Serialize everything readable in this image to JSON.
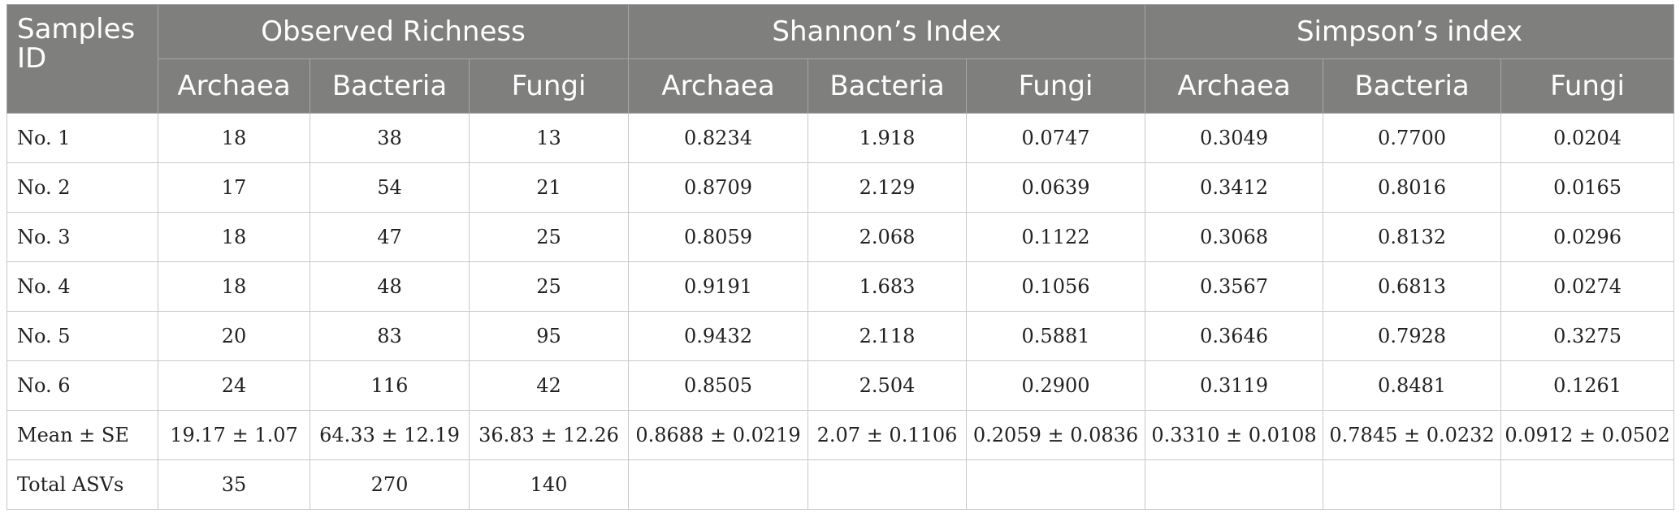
{
  "header": {
    "sample_id": "Samples ID",
    "groups": [
      "Observed Richness",
      "Shannon’s Index",
      "Simpson’s index"
    ],
    "subcolumns": [
      "Archaea",
      "Bacteria",
      "Fungi",
      "Archaea",
      "Bacteria",
      "Fungi",
      "Archaea",
      "Bacteria",
      "Fungi"
    ]
  },
  "rows": [
    {
      "id": "No. 1",
      "cells": [
        "18",
        "38",
        "13",
        "0.8234",
        "1.918",
        "0.0747",
        "0.3049",
        "0.7700",
        "0.0204"
      ]
    },
    {
      "id": "No. 2",
      "cells": [
        "17",
        "54",
        "21",
        "0.8709",
        "2.129",
        "0.0639",
        "0.3412",
        "0.8016",
        "0.0165"
      ]
    },
    {
      "id": "No. 3",
      "cells": [
        "18",
        "47",
        "25",
        "0.8059",
        "2.068",
        "0.1122",
        "0.3068",
        "0.8132",
        "0.0296"
      ]
    },
    {
      "id": "No. 4",
      "cells": [
        "18",
        "48",
        "25",
        "0.9191",
        "1.683",
        "0.1056",
        "0.3567",
        "0.6813",
        "0.0274"
      ]
    },
    {
      "id": "No. 5",
      "cells": [
        "20",
        "83",
        "95",
        "0.9432",
        "2.118",
        "0.5881",
        "0.3646",
        "0.7928",
        "0.3275"
      ]
    },
    {
      "id": "No. 6",
      "cells": [
        "24",
        "116",
        "42",
        "0.8505",
        "2.504",
        "0.2900",
        "0.3119",
        "0.8481",
        "0.1261"
      ]
    },
    {
      "id": "Mean ± SE",
      "cells": [
        "19.17 ± 1.07",
        "64.33 ± 12.19",
        "36.83 ± 12.26",
        "0.8688 ± 0.0219",
        "2.07 ± 0.1106",
        "0.2059 ± 0.0836",
        "0.3310 ± 0.0108",
        "0.7845 ± 0.0232",
        "0.0912 ± 0.0502"
      ]
    },
    {
      "id": "Total ASVs",
      "cells": [
        "35",
        "270",
        "140",
        "",
        "",
        "",
        "",
        "",
        ""
      ]
    }
  ]
}
